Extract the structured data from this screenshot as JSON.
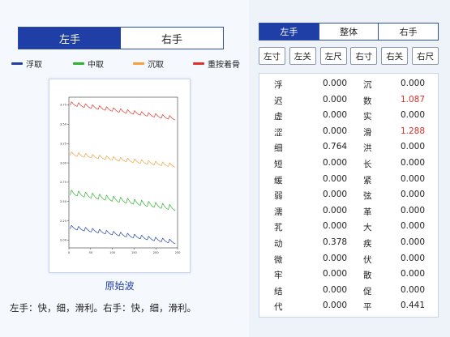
{
  "left": {
    "hand_toggle": [
      {
        "label": "左手",
        "active": true
      },
      {
        "label": "右手",
        "active": false
      }
    ],
    "legend": [
      {
        "label": "浮取",
        "color": "#1f3fa6"
      },
      {
        "label": "中取",
        "color": "#2db32d"
      },
      {
        "label": "沉取",
        "color": "#f5a03a"
      },
      {
        "label": "重按着骨",
        "color": "#e0302a"
      }
    ],
    "caption": "原始波",
    "summary": "左手：快，细，滑利。右手：快，细，滑利。"
  },
  "chart_data": {
    "type": "line",
    "x_ticks": [
      "0",
      "50",
      "100",
      "150",
      "200",
      "250"
    ],
    "y_ticks": [
      "2.00",
      "2.25",
      "2.50",
      "2.75",
      "3.00",
      "3.25",
      "3.50",
      "3.75"
    ],
    "xlim": [
      0,
      250
    ],
    "ylim": [
      1.9,
      3.85
    ],
    "series": [
      {
        "key": "重按着骨",
        "color": "#e0302a",
        "start": 3.77,
        "end": 3.58,
        "amp": 0.05
      },
      {
        "key": "沉取",
        "color": "#f5a03a",
        "start": 3.12,
        "end": 2.97,
        "amp": 0.05
      },
      {
        "key": "中取",
        "color": "#2db32d",
        "start": 2.62,
        "end": 2.42,
        "amp": 0.07
      },
      {
        "key": "浮取",
        "color": "#1f3fa6",
        "start": 2.17,
        "end": 1.98,
        "amp": 0.05
      }
    ],
    "cycles": 15
  },
  "right": {
    "position_tabs": [
      {
        "label": "左手",
        "active": true
      },
      {
        "label": "整体",
        "active": false
      },
      {
        "label": "右手",
        "active": false
      }
    ],
    "pulse_buttons": [
      "左寸",
      "左关",
      "左尺",
      "右寸",
      "右关",
      "右尺"
    ],
    "rows": [
      {
        "n1": "浮",
        "v1": "0.000",
        "n2": "沉",
        "v2": "0.000",
        "hl": false
      },
      {
        "n1": "迟",
        "v1": "0.000",
        "n2": "数",
        "v2": "1.087",
        "hl": true
      },
      {
        "n1": "虚",
        "v1": "0.000",
        "n2": "实",
        "v2": "0.000",
        "hl": false
      },
      {
        "n1": "涩",
        "v1": "0.000",
        "n2": "滑",
        "v2": "1.288",
        "hl": true
      },
      {
        "n1": "细",
        "v1": "0.764",
        "n2": "洪",
        "v2": "0.000",
        "hl": false
      },
      {
        "n1": "短",
        "v1": "0.000",
        "n2": "长",
        "v2": "0.000",
        "hl": false
      },
      {
        "n1": "缓",
        "v1": "0.000",
        "n2": "紧",
        "v2": "0.000",
        "hl": false
      },
      {
        "n1": "弱",
        "v1": "0.000",
        "n2": "弦",
        "v2": "0.000",
        "hl": false
      },
      {
        "n1": "濡",
        "v1": "0.000",
        "n2": "革",
        "v2": "0.000",
        "hl": false
      },
      {
        "n1": "芤",
        "v1": "0.000",
        "n2": "大",
        "v2": "0.000",
        "hl": false
      },
      {
        "n1": "动",
        "v1": "0.378",
        "n2": "疾",
        "v2": "0.000",
        "hl": false
      },
      {
        "n1": "微",
        "v1": "0.000",
        "n2": "伏",
        "v2": "0.000",
        "hl": false
      },
      {
        "n1": "牢",
        "v1": "0.000",
        "n2": "散",
        "v2": "0.000",
        "hl": false
      },
      {
        "n1": "结",
        "v1": "0.000",
        "n2": "促",
        "v2": "0.000",
        "hl": false
      },
      {
        "n1": "代",
        "v1": "0.000",
        "n2": "平",
        "v2": "0.441",
        "hl": false
      }
    ]
  }
}
